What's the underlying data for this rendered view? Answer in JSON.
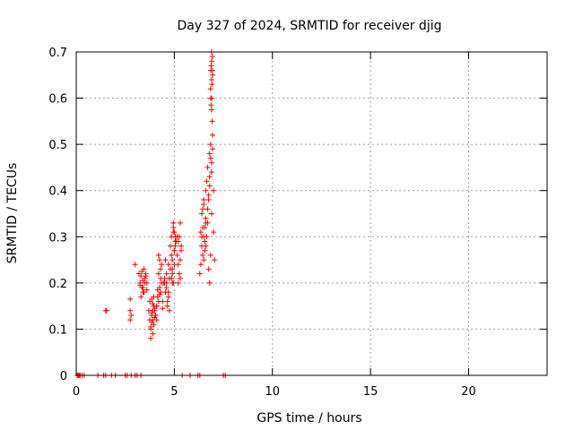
{
  "chart_data": {
    "type": "scatter",
    "title": "Day 327 of 2024, SRMTID for receiver djig",
    "xlabel": "GPS time / hours",
    "ylabel": "SRMTID / TECUs",
    "xlim": [
      0,
      24
    ],
    "ylim": [
      0,
      0.7
    ],
    "x_ticks": [
      0,
      5,
      10,
      15,
      20
    ],
    "y_ticks": [
      0,
      0.1,
      0.2,
      0.3,
      0.4,
      0.5,
      0.6,
      0.7
    ],
    "x_tick_labels": [
      "0",
      "5",
      "10",
      "15",
      "20"
    ],
    "y_tick_labels": [
      "0",
      "0.1",
      "0.2",
      "0.3",
      "0.4",
      "0.5",
      "0.6",
      "0.7"
    ],
    "grid": true,
    "marker": "+",
    "marker_color": "#ff0000",
    "series": [
      {
        "name": "SRMTID",
        "x": [
          0.05,
          0.1,
          0.15,
          0.2,
          0.3,
          0.4,
          1.1,
          1.4,
          1.5,
          1.8,
          2.0,
          2.5,
          2.6,
          2.8,
          3.0,
          3.1,
          3.3,
          5.4,
          5.8,
          6.2,
          6.3,
          7.5,
          7.6,
          1.5,
          1.55,
          2.75,
          2.75,
          2.75,
          2.8,
          3.0,
          3.2,
          3.25,
          3.3,
          3.35,
          3.4,
          3.45,
          3.5,
          3.55,
          3.6,
          3.3,
          3.4,
          3.5,
          3.35,
          3.45,
          3.55,
          3.25,
          3.6,
          3.4,
          3.7,
          3.75,
          3.8,
          3.85,
          3.9,
          3.95,
          4.0,
          3.8,
          3.9,
          3.85,
          3.95,
          3.75,
          4.05,
          3.8,
          3.9,
          3.85,
          4.0,
          3.9,
          3.95,
          3.85,
          4.1,
          4.0,
          4.1,
          4.2,
          4.3,
          4.15,
          4.25,
          4.35,
          4.05,
          4.2,
          4.3,
          4.4,
          4.25,
          4.15,
          4.35,
          4.45,
          4.2,
          4.3,
          4.1,
          4.4,
          4.25,
          4.5,
          4.6,
          4.7,
          4.55,
          4.65,
          4.75,
          4.5,
          4.6,
          4.8,
          4.7,
          4.55,
          4.65,
          4.75,
          4.6,
          4.7,
          4.8,
          4.85,
          4.9,
          4.95,
          5.0,
          5.05,
          4.9,
          5.0,
          4.85,
          4.95,
          5.05,
          4.9,
          5.0,
          4.95,
          4.85,
          5.1,
          5.0,
          4.9,
          5.05,
          4.95,
          5.15,
          5.2,
          5.25,
          5.3,
          5.35,
          5.2,
          5.3,
          5.25,
          5.15,
          5.35,
          5.2,
          5.3,
          6.3,
          6.35,
          6.4,
          6.45,
          6.5,
          6.55,
          6.4,
          6.5,
          6.45,
          6.35,
          6.55,
          6.6,
          6.5,
          6.6,
          6.45,
          6.55,
          6.65,
          6.5,
          6.6,
          6.4,
          6.6,
          6.65,
          6.7,
          6.75,
          6.8,
          6.85,
          6.9,
          6.7,
          6.8,
          6.75,
          6.85,
          6.95,
          6.7,
          6.9,
          6.8,
          6.75,
          6.85,
          6.8,
          6.9,
          6.95,
          7.0,
          7.0,
          7.05,
          6.85,
          6.9,
          6.95,
          6.9,
          6.85,
          6.95,
          6.9,
          6.88,
          6.92,
          6.86,
          6.94,
          6.9,
          6.93,
          6.87,
          6.91
        ],
        "y": [
          0,
          0,
          0,
          0,
          0,
          0,
          0,
          0,
          0,
          0,
          0,
          0,
          0,
          0,
          0,
          0,
          0,
          0,
          0,
          0,
          0,
          0,
          0,
          0.14,
          0.14,
          0.12,
          0.14,
          0.165,
          0.13,
          0.24,
          0.22,
          0.2,
          0.215,
          0.19,
          0.205,
          0.18,
          0.2,
          0.22,
          0.185,
          0.17,
          0.19,
          0.21,
          0.225,
          0.23,
          0.215,
          0.195,
          0.2,
          0.18,
          0.14,
          0.12,
          0.1,
          0.13,
          0.09,
          0.11,
          0.145,
          0.08,
          0.12,
          0.135,
          0.15,
          0.16,
          0.13,
          0.105,
          0.14,
          0.165,
          0.125,
          0.155,
          0.17,
          0.115,
          0.12,
          0.14,
          0.15,
          0.16,
          0.18,
          0.17,
          0.19,
          0.2,
          0.13,
          0.22,
          0.21,
          0.16,
          0.175,
          0.185,
          0.24,
          0.2,
          0.26,
          0.23,
          0.15,
          0.145,
          0.25,
          0.2,
          0.22,
          0.24,
          0.18,
          0.16,
          0.14,
          0.21,
          0.19,
          0.23,
          0.17,
          0.25,
          0.15,
          0.21,
          0.2,
          0.18,
          0.28,
          0.3,
          0.25,
          0.32,
          0.27,
          0.29,
          0.22,
          0.31,
          0.26,
          0.2,
          0.3,
          0.23,
          0.24,
          0.33,
          0.21,
          0.29,
          0.27,
          0.2,
          0.28,
          0.31,
          0.26,
          0.29,
          0.3,
          0.25,
          0.28,
          0.2,
          0.33,
          0.22,
          0.3,
          0.27,
          0.24,
          0.21,
          0.22,
          0.24,
          0.28,
          0.26,
          0.3,
          0.32,
          0.35,
          0.37,
          0.36,
          0.31,
          0.29,
          0.33,
          0.38,
          0.34,
          0.32,
          0.27,
          0.3,
          0.25,
          0.28,
          0.3,
          0.4,
          0.42,
          0.45,
          0.38,
          0.48,
          0.5,
          0.44,
          0.36,
          0.41,
          0.39,
          0.47,
          0.52,
          0.33,
          0.35,
          0.2,
          0.23,
          0.26,
          0.43,
          0.46,
          0.49,
          0.4,
          0.31,
          0.25,
          0.6,
          0.64,
          0.66,
          0.68,
          0.62,
          0.65,
          0.7,
          0.67,
          0.63,
          0.66,
          0.69,
          0.575,
          0.55,
          0.585,
          0.6
        ]
      }
    ]
  }
}
